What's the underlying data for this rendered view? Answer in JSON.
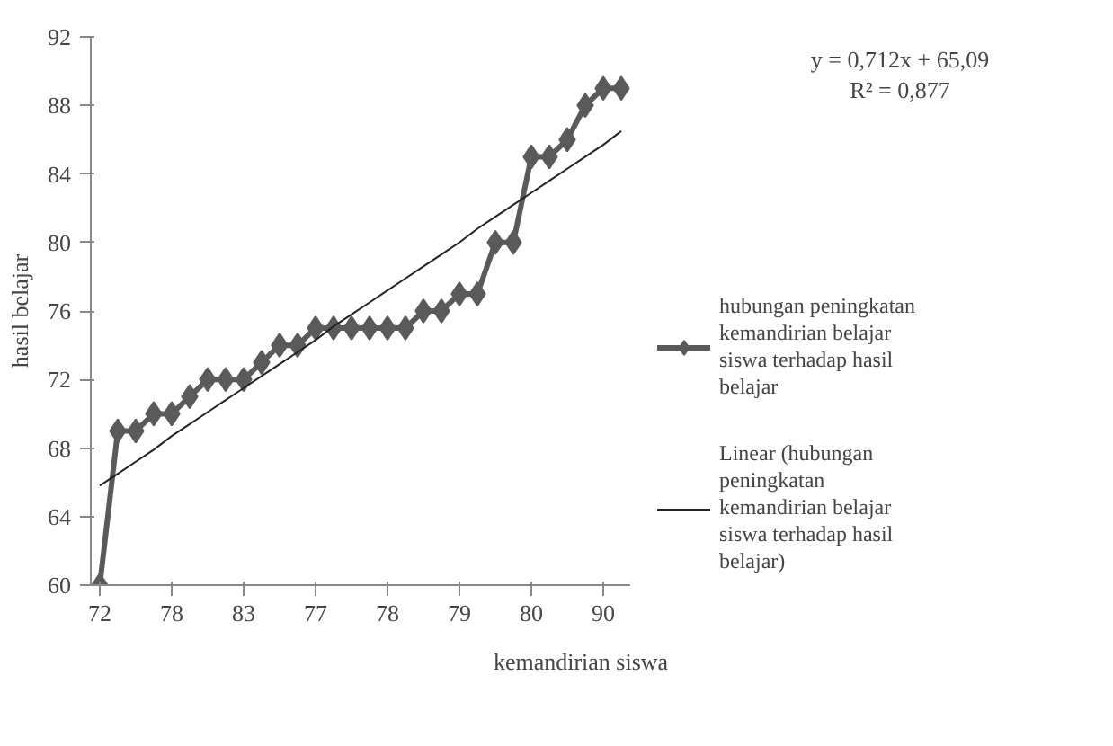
{
  "chart_data": {
    "type": "line",
    "xlabel": "kemandirian siswa",
    "ylabel": "hasil belajar",
    "categories": [
      "72",
      null,
      null,
      null,
      "78",
      null,
      null,
      null,
      "83",
      null,
      null,
      null,
      "77",
      null,
      null,
      null,
      "78",
      null,
      null,
      null,
      "79",
      null,
      null,
      null,
      "80",
      null,
      null,
      null,
      "90",
      null
    ],
    "series": [
      {
        "name": "hubungan peningkatan kemandirian belajar siswa terhadap hasil belajar",
        "color": "#5a5a5a",
        "marker": "diamond",
        "values": [
          60,
          69,
          69,
          70,
          70,
          71,
          72,
          72,
          72,
          73,
          74,
          74,
          75,
          75,
          75,
          75,
          75,
          75,
          76,
          76,
          77,
          77,
          80,
          80,
          85,
          85,
          86,
          88,
          89,
          89
        ]
      },
      {
        "name": "Linear (hubungan peningkatan kemandirian belajar siswa terhadap hasil belajar)",
        "color": "#222222",
        "marker": "none",
        "values": [
          65.8,
          66.5,
          67.2,
          67.9,
          68.7,
          69.4,
          70.1,
          70.8,
          71.5,
          72.2,
          72.9,
          73.6,
          74.3,
          75.1,
          75.8,
          76.5,
          77.2,
          77.9,
          78.6,
          79.3,
          80.0,
          80.8,
          81.5,
          82.2,
          82.9,
          83.6,
          84.3,
          85.0,
          85.7,
          86.5
        ]
      }
    ],
    "ylim": [
      60,
      92
    ],
    "yticks": [
      60,
      64,
      68,
      72,
      76,
      80,
      84,
      88,
      92
    ],
    "annotations": [
      "y = 0,712x + 65,09",
      "R² = 0,877"
    ],
    "grid": false,
    "legend": "right"
  }
}
